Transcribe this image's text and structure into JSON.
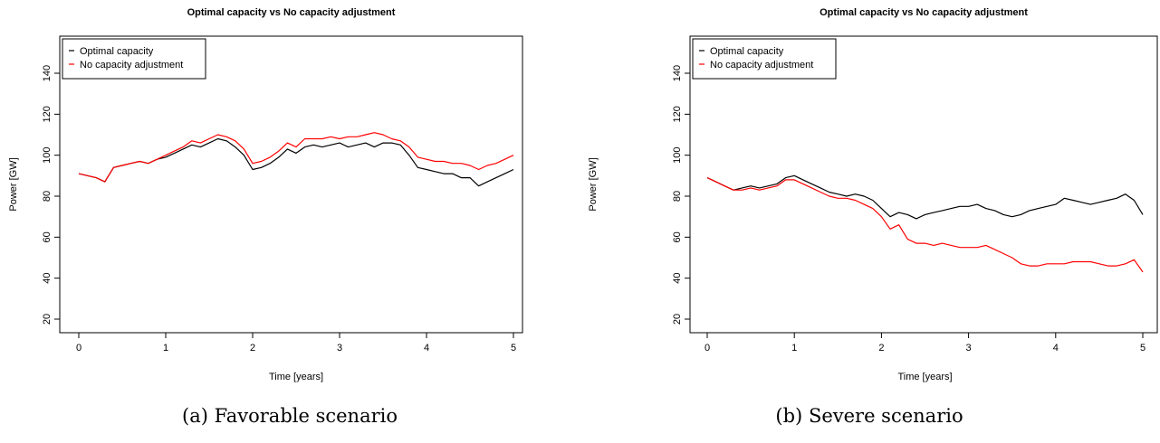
{
  "panels": [
    {
      "caption_label": "(a)",
      "caption_text": "Favorable scenario",
      "chart_data": {
        "type": "line",
        "title": "Optimal capacity vs No capacity adjustment",
        "xlabel": "Time [years]",
        "ylabel": "Power [GW]",
        "xlim": [
          0,
          5
        ],
        "ylim": [
          20,
          150
        ],
        "xticks": [
          0,
          1,
          2,
          3,
          4,
          5
        ],
        "yticks": [
          20,
          40,
          60,
          80,
          100,
          120,
          140
        ],
        "grid": false,
        "legend_position": "top-left",
        "series": [
          {
            "name": "Optimal capacity",
            "color": "#000000",
            "x": [
              0,
              0.1,
              0.2,
              0.3,
              0.4,
              0.5,
              0.6,
              0.7,
              0.8,
              0.9,
              1.0,
              1.1,
              1.2,
              1.3,
              1.4,
              1.5,
              1.6,
              1.7,
              1.8,
              1.9,
              2.0,
              2.1,
              2.2,
              2.3,
              2.4,
              2.5,
              2.6,
              2.7,
              2.8,
              2.9,
              3.0,
              3.1,
              3.2,
              3.3,
              3.4,
              3.5,
              3.6,
              3.7,
              3.8,
              3.9,
              4.0,
              4.1,
              4.2,
              4.3,
              4.4,
              4.5,
              4.6,
              4.7,
              4.8,
              4.9,
              5.0
            ],
            "y": [
              91,
              90,
              89,
              87,
              94,
              95,
              96,
              97,
              96,
              98,
              99,
              101,
              103,
              105,
              104,
              106,
              108,
              107,
              104,
              100,
              93,
              94,
              96,
              99,
              103,
              101,
              104,
              105,
              104,
              105,
              106,
              104,
              105,
              106,
              104,
              106,
              106,
              105,
              100,
              94,
              93,
              92,
              91,
              91,
              89,
              89,
              85,
              87,
              89,
              91,
              93
            ]
          },
          {
            "name": "No capacity adjustment",
            "color": "#ff0000",
            "x": [
              0,
              0.1,
              0.2,
              0.3,
              0.4,
              0.5,
              0.6,
              0.7,
              0.8,
              0.9,
              1.0,
              1.1,
              1.2,
              1.3,
              1.4,
              1.5,
              1.6,
              1.7,
              1.8,
              1.9,
              2.0,
              2.1,
              2.2,
              2.3,
              2.4,
              2.5,
              2.6,
              2.7,
              2.8,
              2.9,
              3.0,
              3.1,
              3.2,
              3.3,
              3.4,
              3.5,
              3.6,
              3.7,
              3.8,
              3.9,
              4.0,
              4.1,
              4.2,
              4.3,
              4.4,
              4.5,
              4.6,
              4.7,
              4.8,
              4.9,
              5.0
            ],
            "y": [
              91,
              90,
              89,
              87,
              94,
              95,
              96,
              97,
              96,
              98,
              100,
              102,
              104,
              107,
              106,
              108,
              110,
              109,
              107,
              103,
              96,
              97,
              99,
              102,
              106,
              104,
              108,
              108,
              108,
              109,
              108,
              109,
              109,
              110,
              111,
              110,
              108,
              107,
              104,
              99,
              98,
              97,
              97,
              96,
              96,
              95,
              93,
              95,
              96,
              98,
              100
            ]
          }
        ]
      }
    },
    {
      "caption_label": "(b)",
      "caption_text": "Severe scenario",
      "chart_data": {
        "type": "line",
        "title": "Optimal capacity vs No capacity adjustment",
        "xlabel": "Time [years]",
        "ylabel": "Power [GW]",
        "xlim": [
          0,
          5
        ],
        "ylim": [
          20,
          150
        ],
        "xticks": [
          0,
          1,
          2,
          3,
          4,
          5
        ],
        "yticks": [
          20,
          40,
          60,
          80,
          100,
          120,
          140
        ],
        "grid": false,
        "legend_position": "top-left",
        "series": [
          {
            "name": "Optimal capacity",
            "color": "#000000",
            "x": [
              0,
              0.1,
              0.2,
              0.3,
              0.4,
              0.5,
              0.6,
              0.7,
              0.8,
              0.9,
              1.0,
              1.1,
              1.2,
              1.3,
              1.4,
              1.5,
              1.6,
              1.7,
              1.8,
              1.9,
              2.0,
              2.1,
              2.2,
              2.3,
              2.4,
              2.5,
              2.6,
              2.7,
              2.8,
              2.9,
              3.0,
              3.1,
              3.2,
              3.3,
              3.4,
              3.5,
              3.6,
              3.7,
              3.8,
              3.9,
              4.0,
              4.1,
              4.2,
              4.3,
              4.4,
              4.5,
              4.6,
              4.7,
              4.8,
              4.9,
              5.0
            ],
            "y": [
              89,
              87,
              85,
              83,
              84,
              85,
              84,
              85,
              86,
              89,
              90,
              88,
              86,
              84,
              82,
              81,
              80,
              81,
              80,
              78,
              74,
              70,
              72,
              71,
              69,
              71,
              72,
              73,
              74,
              75,
              75,
              76,
              74,
              73,
              71,
              70,
              71,
              73,
              74,
              75,
              76,
              79,
              78,
              77,
              76,
              77,
              78,
              79,
              81,
              78,
              71
            ]
          },
          {
            "name": "No capacity adjustment",
            "color": "#ff0000",
            "x": [
              0,
              0.1,
              0.2,
              0.3,
              0.4,
              0.5,
              0.6,
              0.7,
              0.8,
              0.9,
              1.0,
              1.1,
              1.2,
              1.3,
              1.4,
              1.5,
              1.6,
              1.7,
              1.8,
              1.9,
              2.0,
              2.1,
              2.2,
              2.3,
              2.4,
              2.5,
              2.6,
              2.7,
              2.8,
              2.9,
              3.0,
              3.1,
              3.2,
              3.3,
              3.4,
              3.5,
              3.6,
              3.7,
              3.8,
              3.9,
              4.0,
              4.1,
              4.2,
              4.3,
              4.4,
              4.5,
              4.6,
              4.7,
              4.8,
              4.9,
              5.0
            ],
            "y": [
              89,
              87,
              85,
              83,
              83,
              84,
              83,
              84,
              85,
              88,
              88,
              86,
              84,
              82,
              80,
              79,
              79,
              78,
              76,
              74,
              70,
              64,
              66,
              59,
              57,
              57,
              56,
              57,
              56,
              55,
              55,
              55,
              56,
              54,
              52,
              50,
              47,
              46,
              46,
              47,
              47,
              47,
              48,
              48,
              48,
              47,
              46,
              46,
              47,
              49,
              43
            ]
          }
        ]
      }
    }
  ]
}
